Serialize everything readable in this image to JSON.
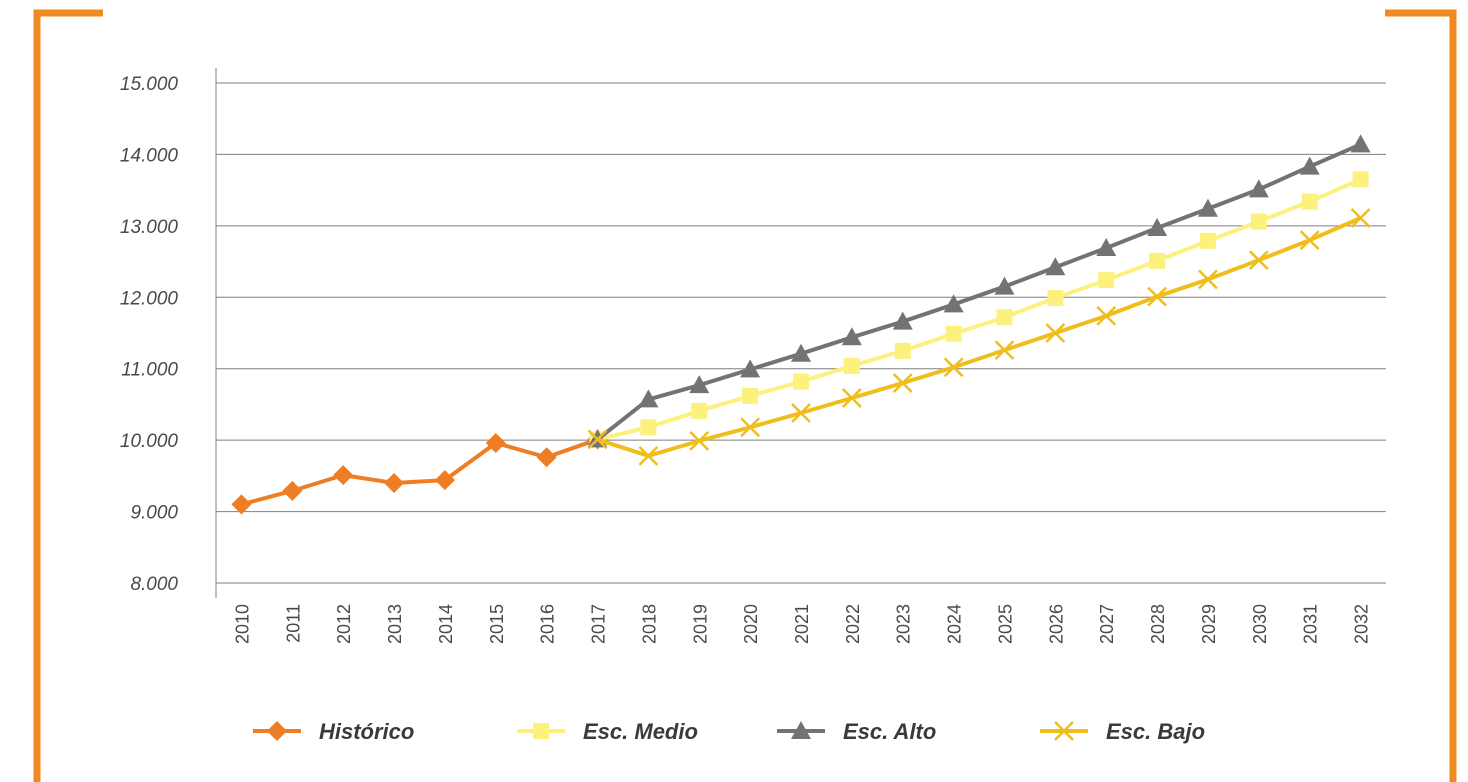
{
  "colors": {
    "frame": "#ef8a22",
    "grid": "#7f7f7f",
    "tick_text": "#4a4a4a",
    "legend_text": "#3a3a3a"
  },
  "chart_data": {
    "type": "line",
    "title": "",
    "xlabel": "",
    "ylabel": "",
    "categories": [
      "2010",
      "2011",
      "2012",
      "2013",
      "2014",
      "2015",
      "2016",
      "2017",
      "2018",
      "2019",
      "2020",
      "2021",
      "2022",
      "2023",
      "2024",
      "2025",
      "2026",
      "2027",
      "2028",
      "2029",
      "2030",
      "2031",
      "2032"
    ],
    "ylim": [
      8000,
      15000
    ],
    "yticks": [
      8000,
      9000,
      10000,
      11000,
      12000,
      13000,
      14000,
      15000
    ],
    "ytick_labels": [
      "8.000",
      "9.000",
      "10.000",
      "11.000",
      "12.000",
      "13.000",
      "14.000",
      "15.000"
    ],
    "grid": true,
    "legend_position": "bottom",
    "series": [
      {
        "name": "Histórico",
        "color": "#ee7d23",
        "marker": "diamond",
        "values": [
          9100,
          9290,
          9510,
          9400,
          9440,
          9960,
          9760,
          10010,
          null,
          null,
          null,
          null,
          null,
          null,
          null,
          null,
          null,
          null,
          null,
          null,
          null,
          null,
          null
        ]
      },
      {
        "name": "Esc. Medio",
        "color": "#fbf17c",
        "marker": "square",
        "values": [
          null,
          null,
          null,
          null,
          null,
          null,
          null,
          10010,
          10180,
          10410,
          10620,
          10820,
          11040,
          11250,
          11490,
          11720,
          11990,
          12240,
          12510,
          12790,
          13060,
          13340,
          13650
        ]
      },
      {
        "name": "Esc. Alto",
        "color": "#737373",
        "marker": "triangle",
        "values": [
          null,
          null,
          null,
          null,
          null,
          null,
          null,
          10010,
          10570,
          10770,
          10990,
          11210,
          11440,
          11660,
          11900,
          12150,
          12420,
          12690,
          12970,
          13240,
          13510,
          13830,
          14140
        ]
      },
      {
        "name": "Esc. Bajo",
        "color": "#f0be1c",
        "marker": "x",
        "values": [
          null,
          null,
          null,
          null,
          null,
          null,
          null,
          10010,
          9780,
          9990,
          10180,
          10380,
          10590,
          10800,
          11020,
          11260,
          11500,
          11740,
          12010,
          12250,
          12520,
          12800,
          13110
        ]
      }
    ]
  }
}
